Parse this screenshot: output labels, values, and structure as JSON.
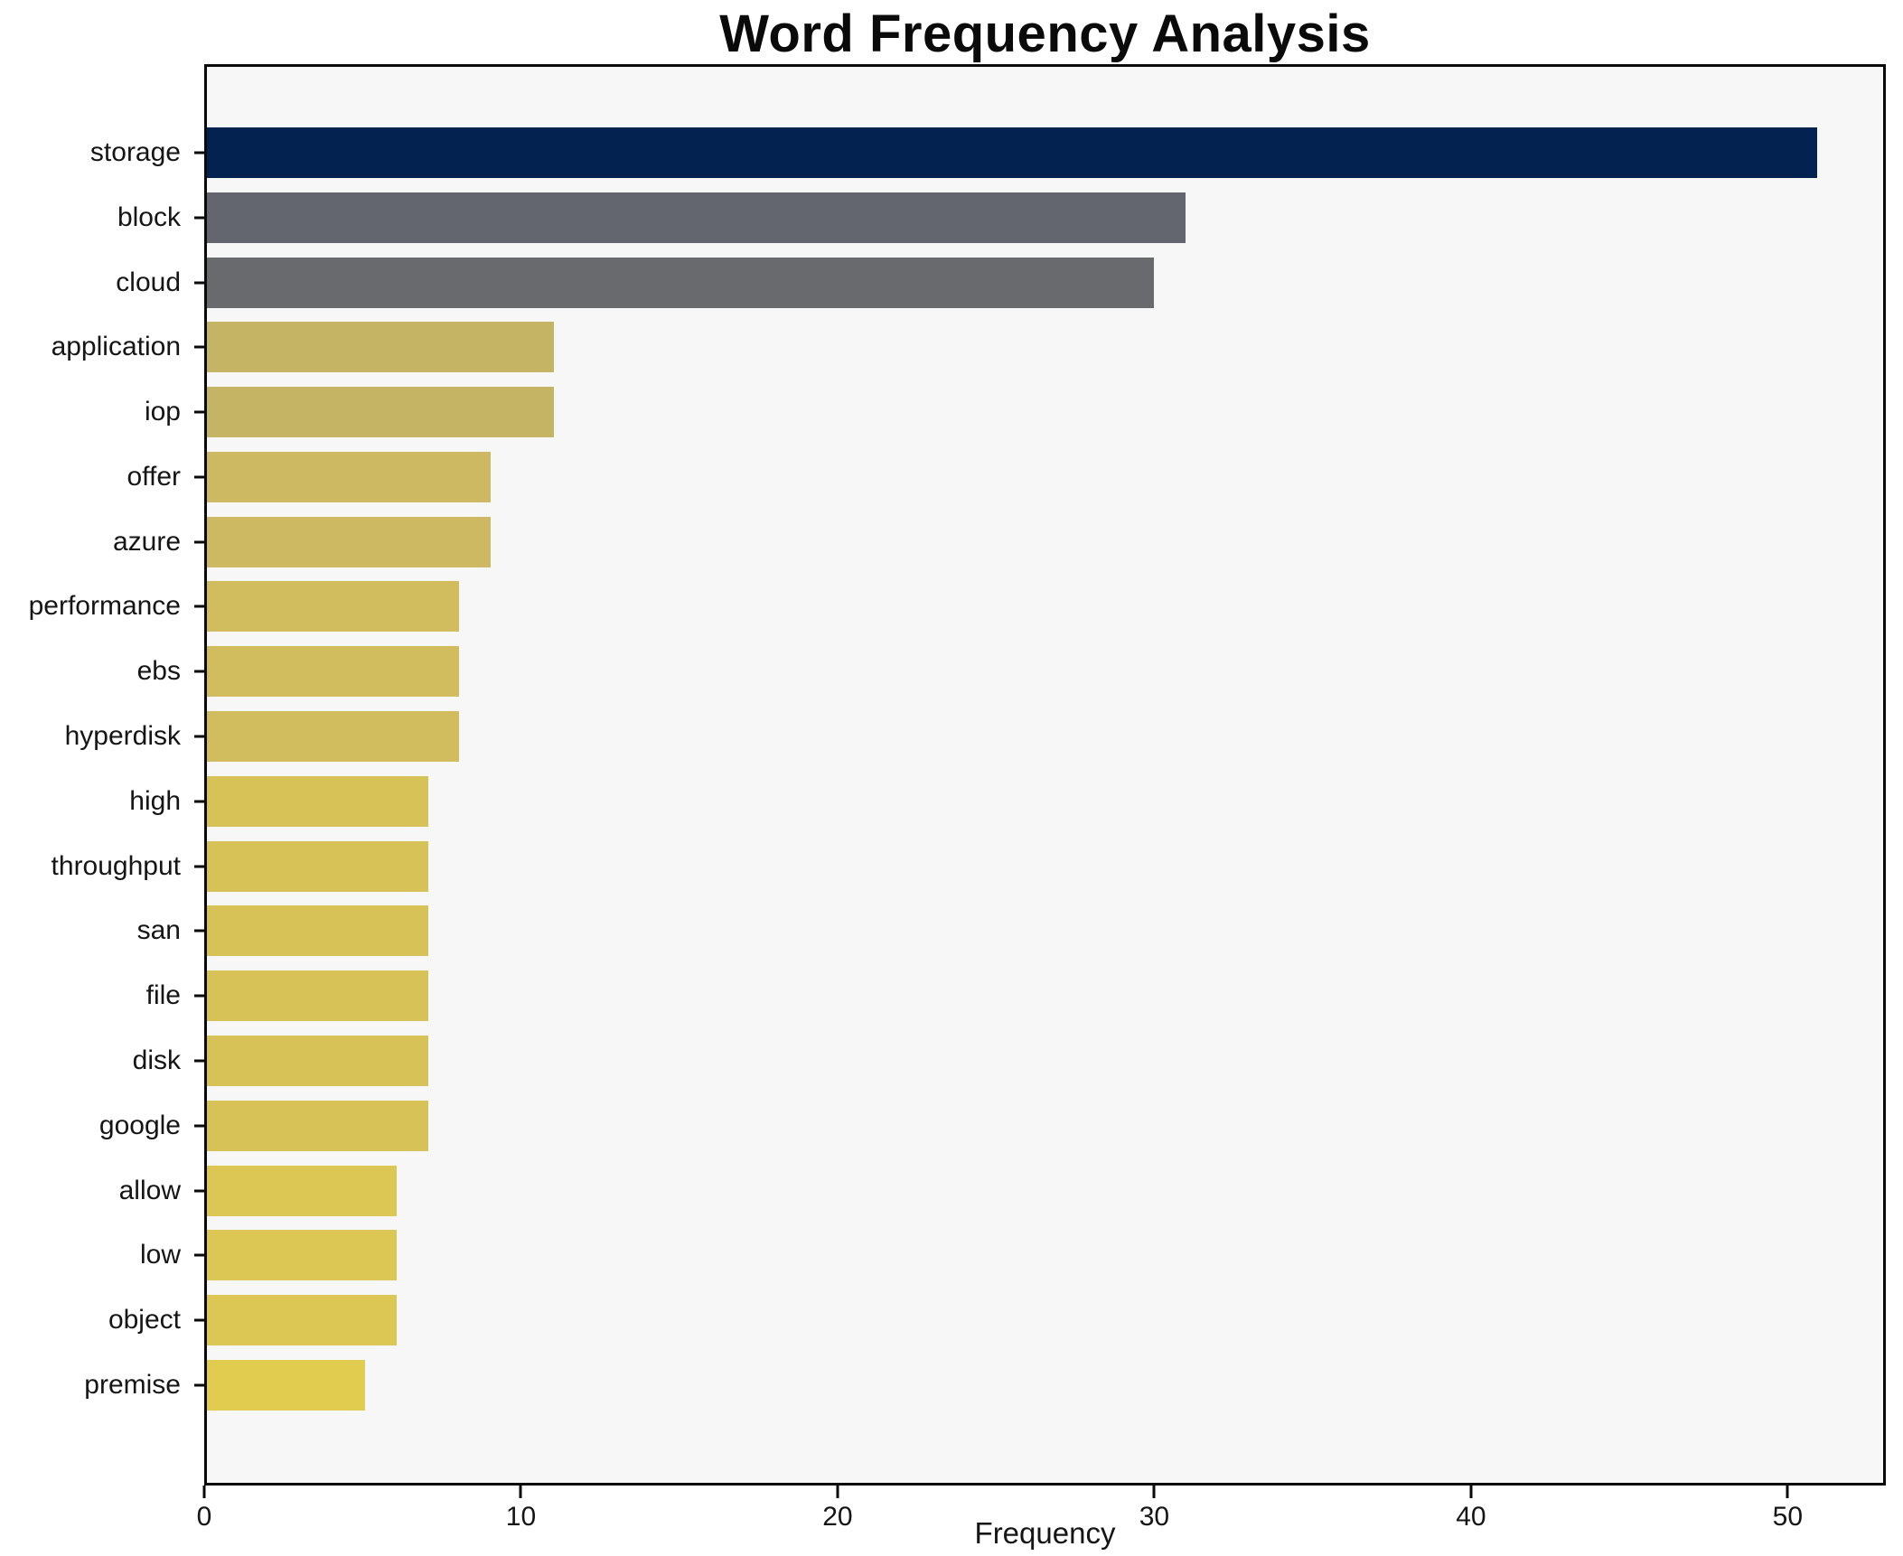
{
  "chart_data": {
    "type": "bar",
    "orientation": "horizontal",
    "title": "Word Frequency Analysis",
    "xlabel": "Frequency",
    "ylabel": "",
    "xlim": [
      0,
      53.1
    ],
    "xticks": [
      0,
      10,
      20,
      30,
      40,
      50
    ],
    "grid": false,
    "legend": "none",
    "plot_background": "#f7f7f7",
    "spine_color": "#0a0a0a",
    "categories": [
      "storage",
      "block",
      "cloud",
      "application",
      "iop",
      "offer",
      "azure",
      "performance",
      "ebs",
      "hyperdisk",
      "high",
      "throughput",
      "san",
      "file",
      "disk",
      "google",
      "allow",
      "low",
      "object",
      "premise"
    ],
    "values": [
      51,
      31,
      30,
      11,
      11,
      9,
      9,
      8,
      8,
      8,
      7,
      7,
      7,
      7,
      7,
      7,
      6,
      6,
      6,
      5
    ],
    "bar_colors": [
      "#03224f",
      "#63666f",
      "#696a6d",
      "#c6b465",
      "#c6b465",
      "#ccb961",
      "#ccb961",
      "#d1bd5d",
      "#d1bd5d",
      "#d1bd5d",
      "#d7c258",
      "#d7c258",
      "#d7c258",
      "#d7c258",
      "#d7c258",
      "#d7c258",
      "#dcc754",
      "#dcc754",
      "#dcc754",
      "#e2cc50"
    ]
  }
}
